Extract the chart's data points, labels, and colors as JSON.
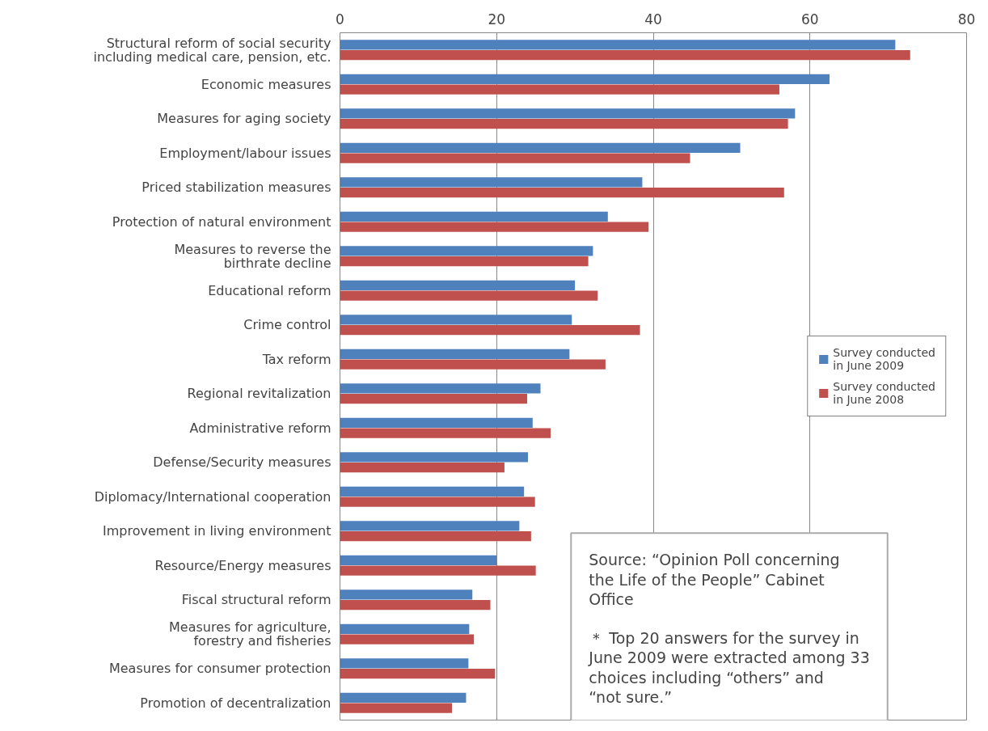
{
  "chart_data": {
    "type": "bar",
    "orientation": "horizontal",
    "categories": [
      "Structural reform of social security\nincluding medical care, pension, etc.",
      "Economic measures",
      "Measures for aging society",
      "Employment/labour issues",
      "Priced stabilization measures",
      "Protection of natural environment",
      "Measures to reverse the\nbirthrate decline",
      "Educational reform",
      "Crime control",
      "Tax reform",
      "Regional revitalization",
      "Administrative reform",
      "Defense/Security measures",
      "Diplomacy/International cooperation",
      "Improvement in living environment",
      "Resource/Energy measures",
      "Fiscal structural reform",
      "Measures for agriculture,\nforestry and fisheries",
      "Measures for consumer protection",
      "Promotion of decentralization"
    ],
    "series": [
      {
        "name": "Survey conducted\nin June 2009",
        "color": "#4f81bd",
        "values": [
          70.9,
          62.5,
          58.1,
          51.1,
          38.6,
          34.2,
          32.3,
          30.0,
          29.6,
          29.3,
          25.6,
          24.6,
          24.0,
          23.5,
          22.9,
          20.0,
          16.9,
          16.5,
          16.4,
          16.1
        ]
      },
      {
        "name": "Survey conducted\nin June 2008",
        "color": "#c0504d",
        "values": [
          72.8,
          56.1,
          57.2,
          44.7,
          56.7,
          39.4,
          31.7,
          32.9,
          38.3,
          33.9,
          23.9,
          26.9,
          21.0,
          24.9,
          24.4,
          25.0,
          19.2,
          17.1,
          19.8,
          14.3
        ]
      }
    ],
    "xlim": [
      0,
      80
    ],
    "xticks": [
      0,
      20,
      40,
      60,
      80
    ],
    "grid": "x",
    "legend": "right",
    "annotations": [
      "Source: “Opinion Poll concerning the Life of the People” Cabinet Office",
      "＊ Top 20 answers for the survey in June 2009 were extracted among 33 choices including “others” and “not sure.”"
    ]
  }
}
